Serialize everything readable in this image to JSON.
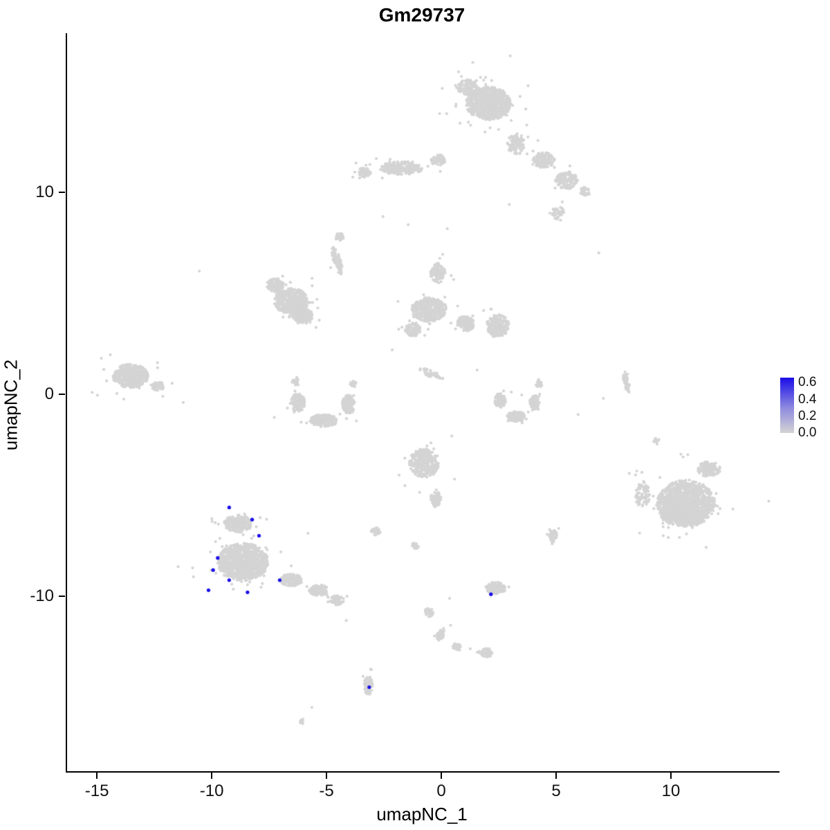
{
  "chart_data": {
    "type": "scatter",
    "title": "Gm29737",
    "xlabel": "umapNC_1",
    "ylabel": "umapNC_2",
    "xlim": [
      -16.36,
      14.67
    ],
    "ylim": [
      -18.66,
      17.88
    ],
    "x_ticks": [
      "-15",
      "-10",
      "-5",
      "0",
      "5",
      "10"
    ],
    "x_tick_values": [
      -15,
      -10,
      -5,
      0,
      5,
      10
    ],
    "y_ticks": [
      "10",
      "0",
      "-10"
    ],
    "y_tick_values": [
      10,
      0,
      -10
    ],
    "grid": false,
    "legend_position": "right",
    "legend": {
      "labels": [
        "0.6",
        "0.4",
        "0.2",
        "0.0"
      ],
      "values": [
        0.6,
        0.4,
        0.2,
        0.0
      ],
      "vmax": 0.66
    },
    "colors": {
      "point_low": "#D4D4D4",
      "point_high": "#1A0DE8",
      "gradient_mid": "#8F8BDF",
      "axis": "#000000",
      "text": "#111111"
    },
    "clusters": [
      {
        "cx": 2.0,
        "cy": 14.4,
        "rx": 1.8,
        "ry": 1.5,
        "n": 850
      },
      {
        "cx": 1.1,
        "cy": 15.2,
        "rx": 0.9,
        "ry": 0.7,
        "n": 150
      },
      {
        "cx": 3.2,
        "cy": 12.4,
        "rx": 0.7,
        "ry": 1.0,
        "n": 130
      },
      {
        "cx": 4.4,
        "cy": 11.6,
        "rx": 0.9,
        "ry": 0.7,
        "n": 150
      },
      {
        "cx": 5.4,
        "cy": 10.6,
        "rx": 0.9,
        "ry": 0.8,
        "n": 140
      },
      {
        "cx": 5.0,
        "cy": 9.0,
        "rx": 0.5,
        "ry": 0.6,
        "n": 50
      },
      {
        "cx": 6.2,
        "cy": 10.0,
        "rx": 0.4,
        "ry": 0.5,
        "n": 35
      },
      {
        "cx": -1.8,
        "cy": 11.2,
        "rx": 1.7,
        "ry": 0.6,
        "n": 260
      },
      {
        "cx": -3.4,
        "cy": 11.0,
        "rx": 0.5,
        "ry": 0.45,
        "n": 60
      },
      {
        "cx": -0.2,
        "cy": 11.6,
        "rx": 0.6,
        "ry": 0.5,
        "n": 60
      },
      {
        "cx": -4.6,
        "cy": 6.6,
        "rx": 0.3,
        "ry": 1.3,
        "n": 70,
        "rot": 15
      },
      {
        "cx": -4.5,
        "cy": 7.8,
        "rx": 0.35,
        "ry": 0.35,
        "n": 30
      },
      {
        "cx": -6.6,
        "cy": 4.6,
        "rx": 1.4,
        "ry": 1.2,
        "n": 420
      },
      {
        "cx": -6.1,
        "cy": 3.9,
        "rx": 0.8,
        "ry": 0.7,
        "n": 200
      },
      {
        "cx": -7.3,
        "cy": 5.4,
        "rx": 0.7,
        "ry": 0.6,
        "n": 120
      },
      {
        "cx": -0.6,
        "cy": 4.2,
        "rx": 1.4,
        "ry": 1.1,
        "n": 420
      },
      {
        "cx": -0.2,
        "cy": 6.0,
        "rx": 0.6,
        "ry": 0.9,
        "n": 110
      },
      {
        "cx": 1.0,
        "cy": 3.5,
        "rx": 0.7,
        "ry": 0.7,
        "n": 130
      },
      {
        "cx": -1.3,
        "cy": 3.2,
        "rx": 0.6,
        "ry": 0.6,
        "n": 110
      },
      {
        "cx": 2.4,
        "cy": 3.4,
        "rx": 0.9,
        "ry": 1.0,
        "n": 210
      },
      {
        "cx": -6.3,
        "cy": -0.4,
        "rx": 0.55,
        "ry": 0.8,
        "n": 150
      },
      {
        "cx": -5.2,
        "cy": -1.3,
        "rx": 1.1,
        "ry": 0.55,
        "n": 260
      },
      {
        "cx": -4.1,
        "cy": -0.5,
        "rx": 0.5,
        "ry": 0.85,
        "n": 150
      },
      {
        "cx": -6.4,
        "cy": 0.6,
        "rx": 0.3,
        "ry": 0.3,
        "n": 35
      },
      {
        "cx": -3.9,
        "cy": 0.5,
        "rx": 0.3,
        "ry": 0.3,
        "n": 30
      },
      {
        "cx": -13.6,
        "cy": 0.9,
        "rx": 1.4,
        "ry": 1.1,
        "n": 500
      },
      {
        "cx": -12.4,
        "cy": 0.4,
        "rx": 0.5,
        "ry": 0.4,
        "n": 60
      },
      {
        "cx": -0.5,
        "cy": 1.0,
        "rx": 1.1,
        "ry": 0.3,
        "n": 45,
        "rot": -25
      },
      {
        "cx": 2.5,
        "cy": -0.3,
        "rx": 0.45,
        "ry": 0.65,
        "n": 110
      },
      {
        "cx": 3.2,
        "cy": -1.1,
        "rx": 0.75,
        "ry": 0.45,
        "n": 170
      },
      {
        "cx": 4.0,
        "cy": -0.4,
        "rx": 0.4,
        "ry": 0.65,
        "n": 100
      },
      {
        "cx": 4.2,
        "cy": 0.5,
        "rx": 0.25,
        "ry": 0.3,
        "n": 25
      },
      {
        "cx": 8.0,
        "cy": 0.6,
        "rx": 0.2,
        "ry": 1.0,
        "n": 55,
        "rot": 10
      },
      {
        "cx": -0.8,
        "cy": -3.4,
        "rx": 1.2,
        "ry": 1.3,
        "n": 330
      },
      {
        "cx": -0.3,
        "cy": -5.2,
        "rx": 0.45,
        "ry": 0.7,
        "n": 70
      },
      {
        "cx": -8.7,
        "cy": -8.3,
        "rx": 2.0,
        "ry": 1.7,
        "n": 1100
      },
      {
        "cx": -8.9,
        "cy": -6.4,
        "rx": 1.1,
        "ry": 0.8,
        "n": 240
      },
      {
        "cx": -6.6,
        "cy": -9.2,
        "rx": 0.9,
        "ry": 0.55,
        "n": 170
      },
      {
        "cx": -5.4,
        "cy": -9.7,
        "rx": 0.75,
        "ry": 0.5,
        "n": 130
      },
      {
        "cx": -4.6,
        "cy": -10.2,
        "rx": 0.55,
        "ry": 0.45,
        "n": 80
      },
      {
        "cx": -2.9,
        "cy": -6.8,
        "rx": 0.4,
        "ry": 0.35,
        "n": 45
      },
      {
        "cx": -1.2,
        "cy": -7.5,
        "rx": 0.3,
        "ry": 0.28,
        "n": 25
      },
      {
        "cx": 4.8,
        "cy": -7.0,
        "rx": 0.35,
        "ry": 0.55,
        "n": 55
      },
      {
        "cx": 2.3,
        "cy": -9.6,
        "rx": 0.8,
        "ry": 0.55,
        "n": 150
      },
      {
        "cx": 10.6,
        "cy": -5.4,
        "rx": 2.3,
        "ry": 2.1,
        "n": 1250
      },
      {
        "cx": 10.2,
        "cy": -5.9,
        "rx": 1.3,
        "ry": 1.1,
        "n": 350
      },
      {
        "cx": 11.6,
        "cy": -3.7,
        "rx": 0.9,
        "ry": 0.7,
        "n": 140
      },
      {
        "cx": 8.7,
        "cy": -5.0,
        "rx": 0.6,
        "ry": 1.1,
        "n": 90
      },
      {
        "cx": 9.3,
        "cy": -2.3,
        "rx": 0.3,
        "ry": 0.3,
        "n": 14
      },
      {
        "cx": -0.6,
        "cy": -10.8,
        "rx": 0.35,
        "ry": 0.45,
        "n": 40
      },
      {
        "cx": -0.1,
        "cy": -11.9,
        "rx": 0.3,
        "ry": 0.55,
        "n": 50,
        "rot": -15
      },
      {
        "cx": 0.6,
        "cy": -12.5,
        "rx": 0.35,
        "ry": 0.3,
        "n": 30
      },
      {
        "cx": 1.9,
        "cy": -12.8,
        "rx": 0.5,
        "ry": 0.4,
        "n": 55
      },
      {
        "cx": -3.25,
        "cy": -14.4,
        "rx": 0.35,
        "ry": 0.85,
        "n": 90
      },
      {
        "cx": -6.1,
        "cy": -16.2,
        "rx": 0.25,
        "ry": 0.2,
        "n": 8
      }
    ],
    "sparse_points": [
      [
        6.8,
        7.0
      ],
      [
        -2.6,
        8.8
      ],
      [
        -1.5,
        8.4
      ],
      [
        0.2,
        8.2
      ],
      [
        -10.6,
        6.1
      ],
      [
        7.0,
        -0.2
      ],
      [
        5.9,
        -1.0
      ],
      [
        0.3,
        -10.1
      ],
      [
        -4.2,
        -11.2
      ],
      [
        -5.7,
        -15.5
      ],
      [
        1.2,
        -12.6
      ],
      [
        -11.3,
        -0.4
      ],
      [
        2.9,
        9.4
      ],
      [
        -2.2,
        2.2
      ],
      [
        1.5,
        1.2
      ]
    ],
    "highlighted_points": [
      {
        "x": -9.3,
        "y": -5.6,
        "value": 0.6
      },
      {
        "x": -8.3,
        "y": -6.2,
        "value": 0.6
      },
      {
        "x": -8.0,
        "y": -7.0,
        "value": 0.6
      },
      {
        "x": -9.8,
        "y": -8.1,
        "value": 0.5
      },
      {
        "x": -10.0,
        "y": -8.7,
        "value": 0.6
      },
      {
        "x": -9.3,
        "y": -9.2,
        "value": 0.5
      },
      {
        "x": -10.2,
        "y": -9.7,
        "value": 0.6
      },
      {
        "x": -8.5,
        "y": -9.8,
        "value": 0.5
      },
      {
        "x": -7.1,
        "y": -9.2,
        "value": 0.6
      },
      {
        "x": 2.1,
        "y": -9.9,
        "value": 0.6
      },
      {
        "x": -3.2,
        "y": -14.5,
        "value": 0.5
      }
    ]
  }
}
